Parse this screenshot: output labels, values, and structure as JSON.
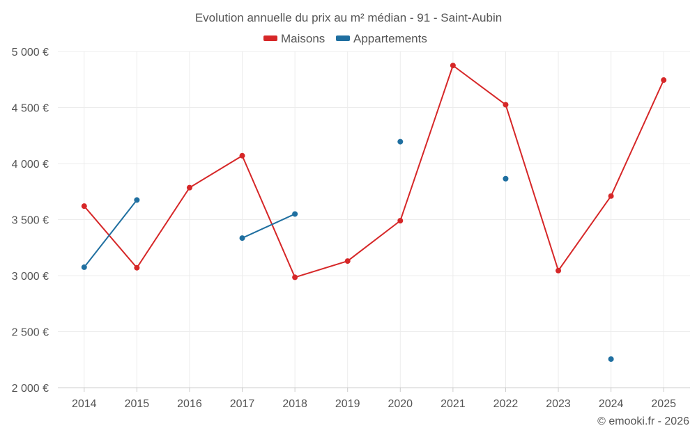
{
  "chart_data": {
    "type": "line",
    "title": "Evolution annuelle du prix au m² médian - 91 - Saint-Aubin",
    "categories": [
      "2014",
      "2015",
      "2016",
      "2017",
      "2018",
      "2019",
      "2020",
      "2021",
      "2022",
      "2023",
      "2024",
      "2025"
    ],
    "xlabel": "",
    "ylabel": "",
    "ylim": [
      2000,
      5000
    ],
    "yticks": [
      2000,
      2500,
      3000,
      3500,
      4000,
      4500,
      5000
    ],
    "ytick_labels": [
      "2 000 €",
      "2 500 €",
      "3 000 €",
      "3 500 €",
      "4 000 €",
      "4 500 €",
      "5 000 €"
    ],
    "grid": true,
    "legend_position": "top-center",
    "series": [
      {
        "name": "Maisons",
        "color": "#d62728",
        "values": [
          3620,
          3070,
          3785,
          4070,
          2985,
          3130,
          3490,
          4875,
          4525,
          3045,
          3710,
          4745
        ]
      },
      {
        "name": "Appartements",
        "color": "#1f6fa0",
        "values": [
          3075,
          3675,
          null,
          3335,
          3550,
          null,
          4195,
          null,
          3865,
          null,
          2255,
          null
        ]
      }
    ],
    "credit": "© emooki.fr - 2026"
  }
}
